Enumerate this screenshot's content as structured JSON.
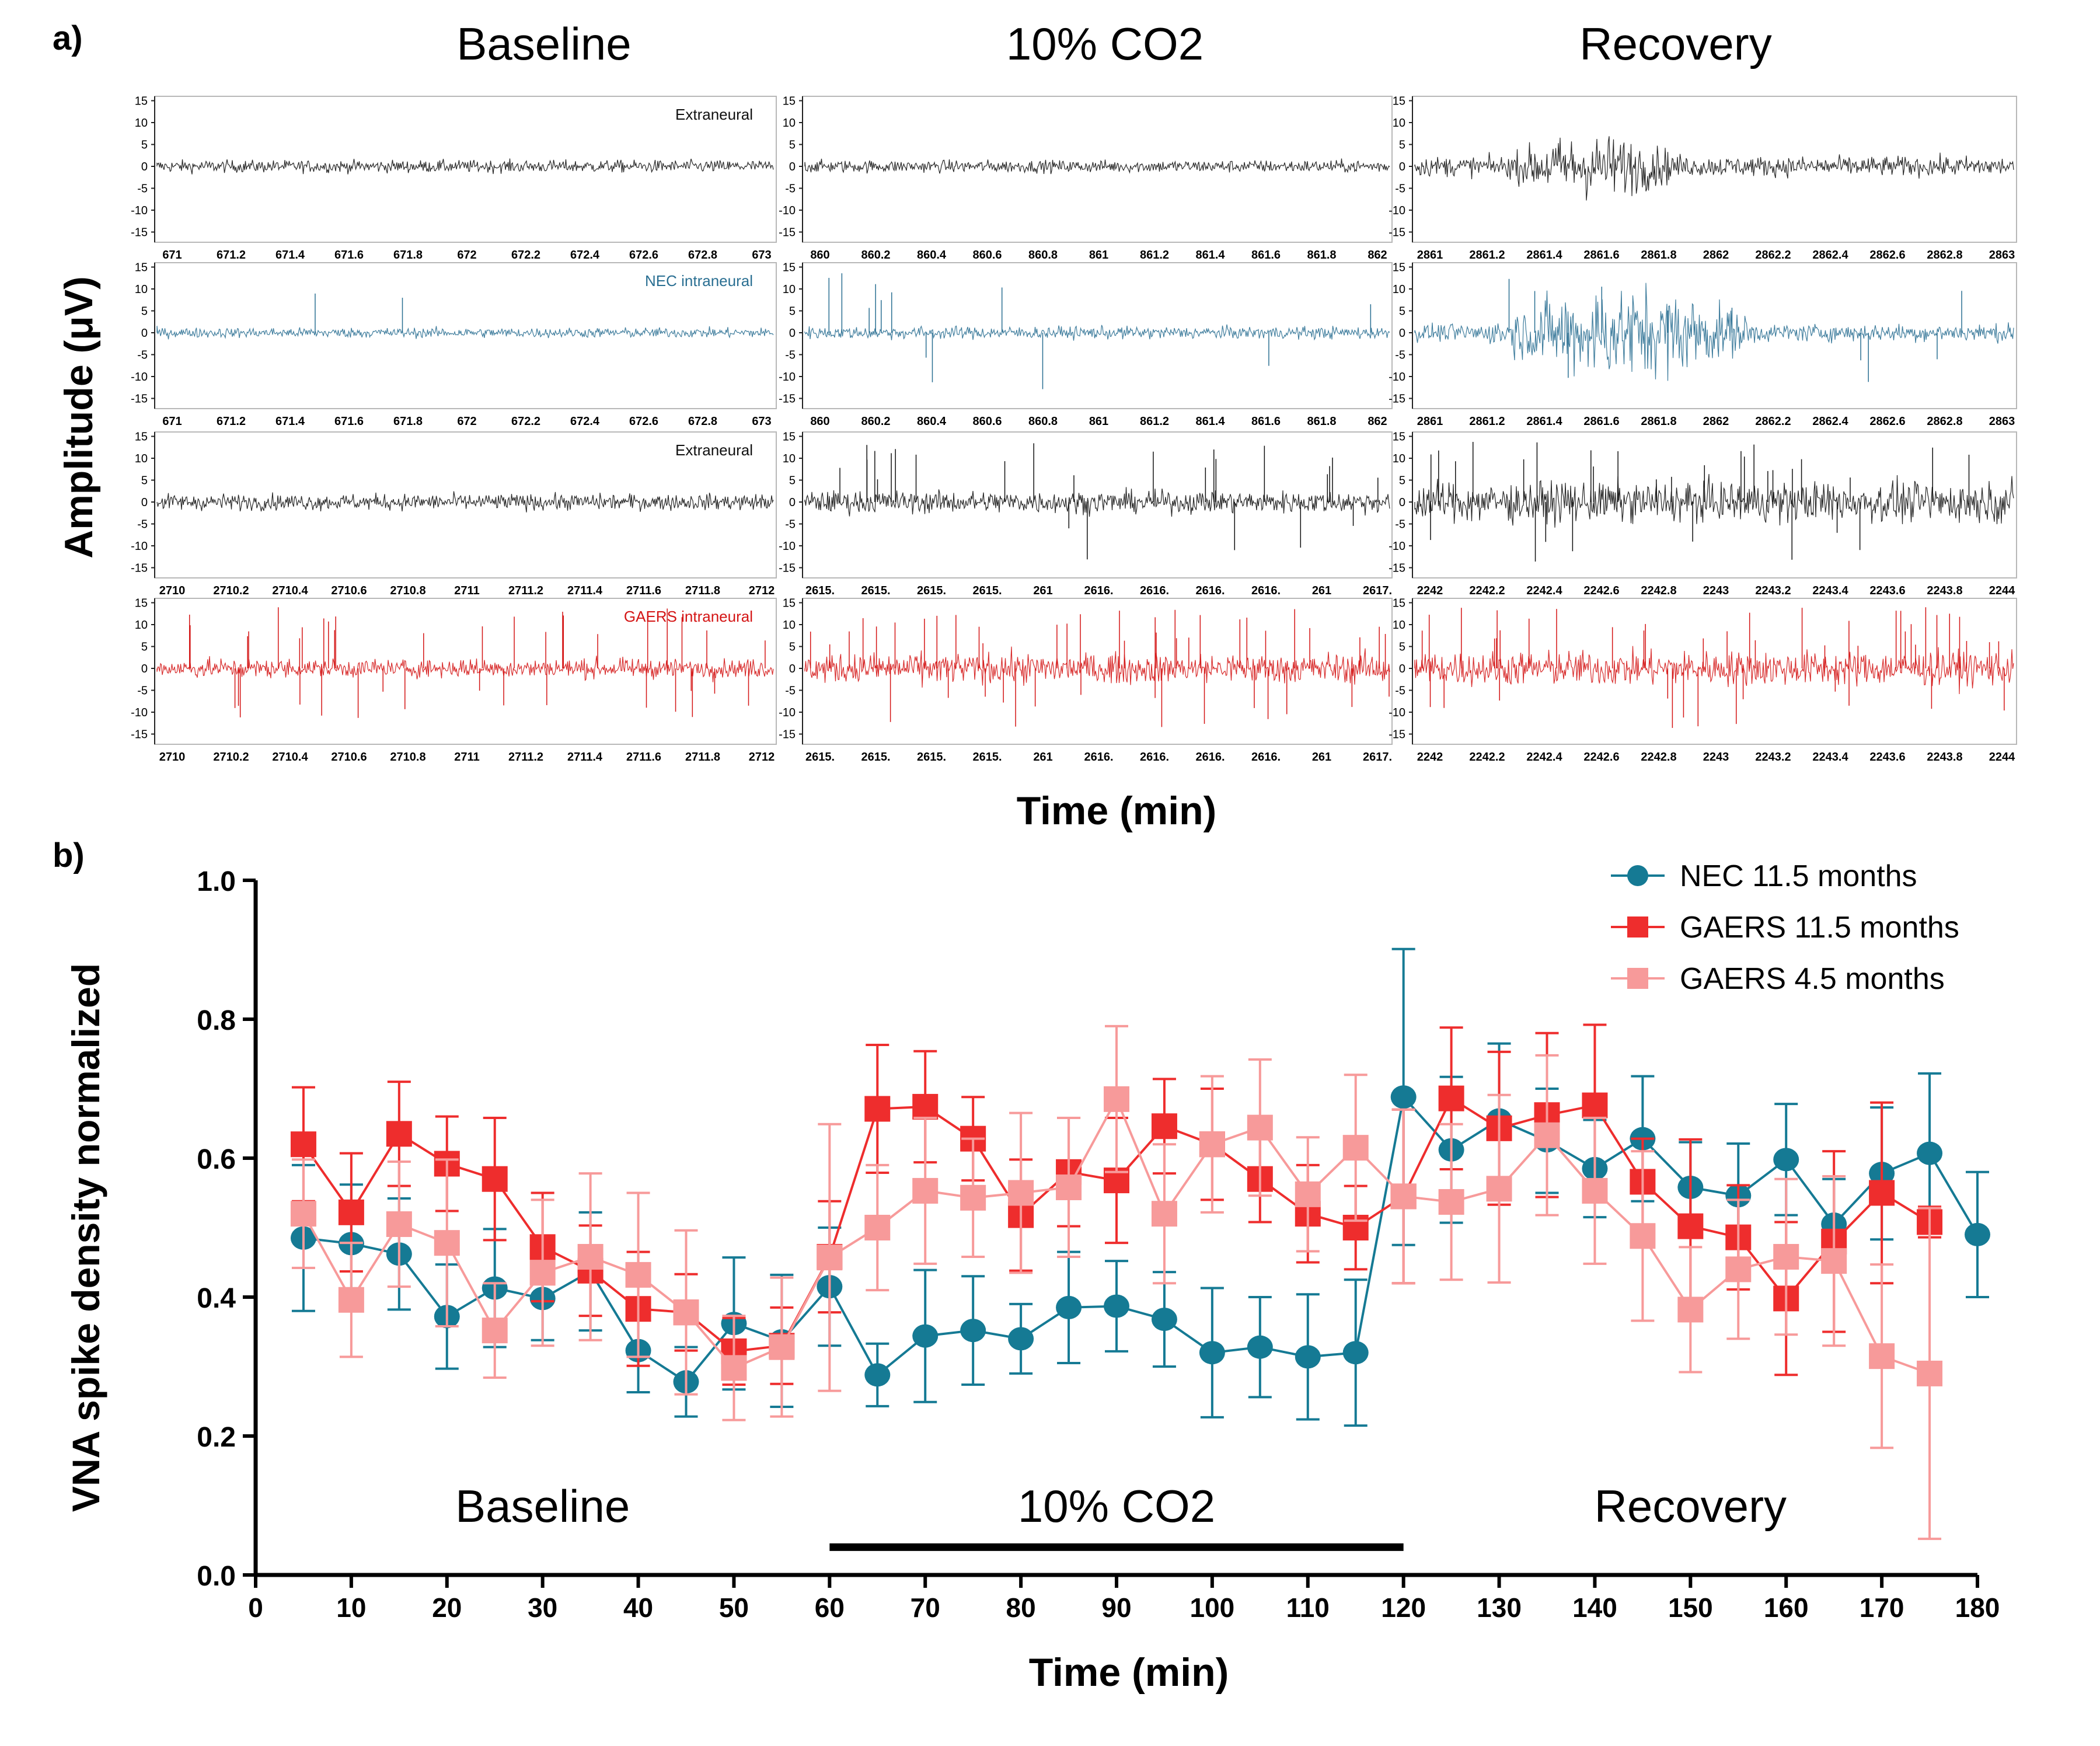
{
  "panel_a": {
    "label": "a)",
    "column_titles": [
      "Baseline",
      "10% CO2",
      "Recovery"
    ],
    "ylabel": "Amplitude (μV)",
    "xlabel": "Time (min)",
    "yticks": [
      "15",
      "10",
      "5",
      "0",
      "-5",
      "-10",
      "-15"
    ],
    "colors": {
      "black": "#111111",
      "blue": "#2a6f92",
      "red": "#d41515"
    },
    "rows": [
      {
        "color": "black",
        "trace_annotation": "Extraneural",
        "columns": [
          {
            "ticks": [
              "671",
              "671.2",
              "671.4",
              "671.6",
              "671.8",
              "672",
              "672.2",
              "672.4",
              "672.6",
              "672.8",
              "673"
            ],
            "amp": 1.0,
            "spikes": 0,
            "burst": null
          },
          {
            "ticks": [
              "860",
              "860.2",
              "860.4",
              "860.6",
              "860.8",
              "861",
              "861.2",
              "861.4",
              "861.6",
              "861.8",
              "862"
            ],
            "amp": 1.0,
            "spikes": 0,
            "burst": null
          },
          {
            "ticks": [
              "2861",
              "2861.2",
              "2861.4",
              "2861.6",
              "2861.8",
              "2862",
              "2862.2",
              "2862.4",
              "2862.6",
              "2862.8",
              "2863"
            ],
            "amp": 1.6,
            "spikes": 0,
            "burst": [
              0.15,
              0.45,
              3.5
            ]
          }
        ]
      },
      {
        "color": "blue",
        "trace_annotation": "NEC intraneural",
        "columns": [
          {
            "ticks": [
              "671",
              "671.2",
              "671.4",
              "671.6",
              "671.8",
              "672",
              "672.2",
              "672.4",
              "672.6",
              "672.8",
              "673"
            ],
            "amp": 0.8,
            "spikes": 2,
            "burst": null
          },
          {
            "ticks": [
              "860",
              "860.2",
              "860.4",
              "860.6",
              "860.8",
              "861",
              "861.2",
              "861.4",
              "861.6",
              "861.8",
              "862"
            ],
            "amp": 1.0,
            "spikes": 12,
            "burst": null
          },
          {
            "ticks": [
              "2861",
              "2861.2",
              "2861.4",
              "2861.6",
              "2861.8",
              "2862",
              "2862.2",
              "2862.4",
              "2862.6",
              "2862.8",
              "2863"
            ],
            "amp": 1.4,
            "spikes": 10,
            "burst": [
              0.12,
              0.58,
              6.0
            ]
          }
        ]
      },
      {
        "color": "black",
        "trace_annotation": "Extraneural",
        "columns": [
          {
            "ticks": [
              "2710",
              "2710.2",
              "2710.4",
              "2710.6",
              "2710.8",
              "2711",
              "2711.2",
              "2711.4",
              "2711.6",
              "2711.8",
              "2712"
            ],
            "amp": 1.3,
            "spikes": 0,
            "burst": null
          },
          {
            "ticks": [
              "2615.",
              "2615.",
              "2615.",
              "2615.",
              "261",
              "2616.",
              "2616.",
              "2616.",
              "2616.",
              "261",
              "2617."
            ],
            "amp": 1.8,
            "spikes": 25,
            "burst": null
          },
          {
            "ticks": [
              "2242",
              "2242.2",
              "2242.4",
              "2242.6",
              "2242.8",
              "2243",
              "2243.2",
              "2243.4",
              "2243.6",
              "2243.8",
              "2244"
            ],
            "amp": 3.2,
            "spikes": 30,
            "burst": null
          }
        ]
      },
      {
        "color": "red",
        "trace_annotation": "GAERS intraneural",
        "columns": [
          {
            "ticks": [
              "2710",
              "2710.2",
              "2710.4",
              "2710.6",
              "2710.8",
              "2711",
              "2711.2",
              "2711.4",
              "2711.6",
              "2711.8",
              "2712"
            ],
            "amp": 1.5,
            "spikes": 40,
            "burst": null
          },
          {
            "ticks": [
              "2615.",
              "2615.",
              "2615.",
              "2615.",
              "261",
              "2616.",
              "2616.",
              "2616.",
              "2616.",
              "261",
              "2617."
            ],
            "amp": 2.4,
            "spikes": 45,
            "burst": null
          },
          {
            "ticks": [
              "2242",
              "2242.2",
              "2242.4",
              "2242.6",
              "2242.8",
              "2243",
              "2243.2",
              "2243.4",
              "2243.6",
              "2243.8",
              "2244"
            ],
            "amp": 2.8,
            "spikes": 45,
            "burst": null
          }
        ]
      }
    ]
  },
  "chart_data": {
    "type": "line",
    "label": "b)",
    "title": "",
    "xlabel": "Time (min)",
    "ylabel": "VNA spike density normalized",
    "xlim": [
      0,
      180
    ],
    "ylim": [
      0,
      1.0
    ],
    "xticks": [
      0,
      10,
      20,
      30,
      40,
      50,
      60,
      70,
      80,
      90,
      100,
      110,
      120,
      130,
      140,
      150,
      160,
      170,
      180
    ],
    "yticks": [
      0.0,
      0.2,
      0.4,
      0.6,
      0.8,
      1.0
    ],
    "ytick_labels": [
      "0.0",
      "0.2",
      "0.4",
      "0.6",
      "0.8",
      "1.0"
    ],
    "grid": false,
    "legend_position": "top-right",
    "annotations": [
      {
        "text": "Baseline",
        "x": 30,
        "y": 0.1
      },
      {
        "text": "10% CO2",
        "x": 90,
        "y": 0.1
      },
      {
        "text": "Recovery",
        "x": 150,
        "y": 0.1
      }
    ],
    "co2_bar": {
      "x_start": 60,
      "x_end": 120,
      "y": 0.04
    },
    "series": [
      {
        "name": "NEC 11.5 months",
        "color": "#157a94",
        "marker": "circle",
        "x": [
          5,
          10,
          15,
          20,
          25,
          30,
          35,
          40,
          45,
          50,
          55,
          60,
          65,
          70,
          75,
          80,
          85,
          90,
          95,
          100,
          105,
          110,
          115,
          120,
          125,
          130,
          135,
          140,
          145,
          150,
          155,
          160,
          165,
          170,
          175,
          180
        ],
        "y": [
          0.485,
          0.477,
          0.462,
          0.372,
          0.413,
          0.398,
          0.437,
          0.323,
          0.278,
          0.362,
          0.337,
          0.415,
          0.288,
          0.344,
          0.352,
          0.34,
          0.385,
          0.387,
          0.368,
          0.32,
          0.328,
          0.314,
          0.32,
          0.688,
          0.612,
          0.655,
          0.625,
          0.585,
          0.628,
          0.558,
          0.546,
          0.598,
          0.505,
          0.578,
          0.607,
          0.49
        ],
        "err": [
          0.105,
          0.085,
          0.08,
          0.075,
          0.085,
          0.06,
          0.085,
          0.06,
          0.05,
          0.095,
          0.095,
          0.085,
          0.045,
          0.095,
          0.078,
          0.05,
          0.08,
          0.065,
          0.068,
          0.093,
          0.072,
          0.09,
          0.105,
          0.213,
          0.105,
          0.11,
          0.075,
          0.07,
          0.09,
          0.065,
          0.075,
          0.08,
          0.065,
          0.095,
          0.115,
          0.09
        ]
      },
      {
        "name": "GAERS 11.5 months",
        "color": "#ee2d2d",
        "marker": "square",
        "x": [
          5,
          10,
          15,
          20,
          25,
          30,
          35,
          40,
          45,
          50,
          55,
          60,
          65,
          70,
          75,
          80,
          85,
          90,
          95,
          100,
          105,
          110,
          115,
          120,
          125,
          130,
          135,
          140,
          145,
          150,
          155,
          160,
          165,
          170,
          175
        ],
        "y": [
          0.62,
          0.522,
          0.635,
          0.592,
          0.57,
          0.472,
          0.438,
          0.383,
          0.378,
          0.322,
          0.33,
          0.458,
          0.671,
          0.674,
          0.628,
          0.518,
          0.58,
          0.568,
          0.646,
          0.62,
          0.57,
          0.52,
          0.5,
          0.545,
          0.686,
          0.643,
          0.662,
          0.676,
          0.566,
          0.502,
          0.486,
          0.398,
          0.48,
          0.55,
          0.508
        ],
        "err": [
          0.082,
          0.085,
          0.075,
          0.068,
          0.088,
          0.078,
          0.065,
          0.082,
          0.055,
          0.048,
          0.055,
          0.08,
          0.092,
          0.08,
          0.06,
          0.08,
          0.078,
          0.09,
          0.068,
          0.08,
          0.062,
          0.07,
          0.06,
          0.125,
          0.102,
          0.11,
          0.118,
          0.116,
          0.062,
          0.125,
          0.075,
          0.11,
          0.13,
          0.13,
          0.022
        ]
      },
      {
        "name": "GAERS 4.5 months",
        "color": "#f79a9a",
        "marker": "square",
        "x": [
          5,
          10,
          15,
          20,
          25,
          30,
          35,
          40,
          45,
          50,
          55,
          60,
          65,
          70,
          75,
          80,
          85,
          90,
          95,
          100,
          105,
          110,
          115,
          120,
          125,
          130,
          135,
          140,
          145,
          150,
          155,
          160,
          165,
          170,
          175
        ],
        "y": [
          0.52,
          0.396,
          0.505,
          0.478,
          0.352,
          0.435,
          0.458,
          0.432,
          0.378,
          0.298,
          0.328,
          0.457,
          0.5,
          0.553,
          0.543,
          0.55,
          0.558,
          0.685,
          0.52,
          0.62,
          0.644,
          0.548,
          0.615,
          0.545,
          0.537,
          0.556,
          0.633,
          0.553,
          0.488,
          0.382,
          0.44,
          0.458,
          0.452,
          0.315,
          0.29
        ],
        "err": [
          0.078,
          0.082,
          0.09,
          0.12,
          0.068,
          0.105,
          0.12,
          0.118,
          0.118,
          0.075,
          0.1,
          0.192,
          0.09,
          0.105,
          0.085,
          0.115,
          0.1,
          0.105,
          0.1,
          0.098,
          0.098,
          0.082,
          0.105,
          0.125,
          0.112,
          0.135,
          0.115,
          0.105,
          0.122,
          0.09,
          0.1,
          0.112,
          0.122,
          0.132,
          0.238
        ]
      }
    ]
  }
}
